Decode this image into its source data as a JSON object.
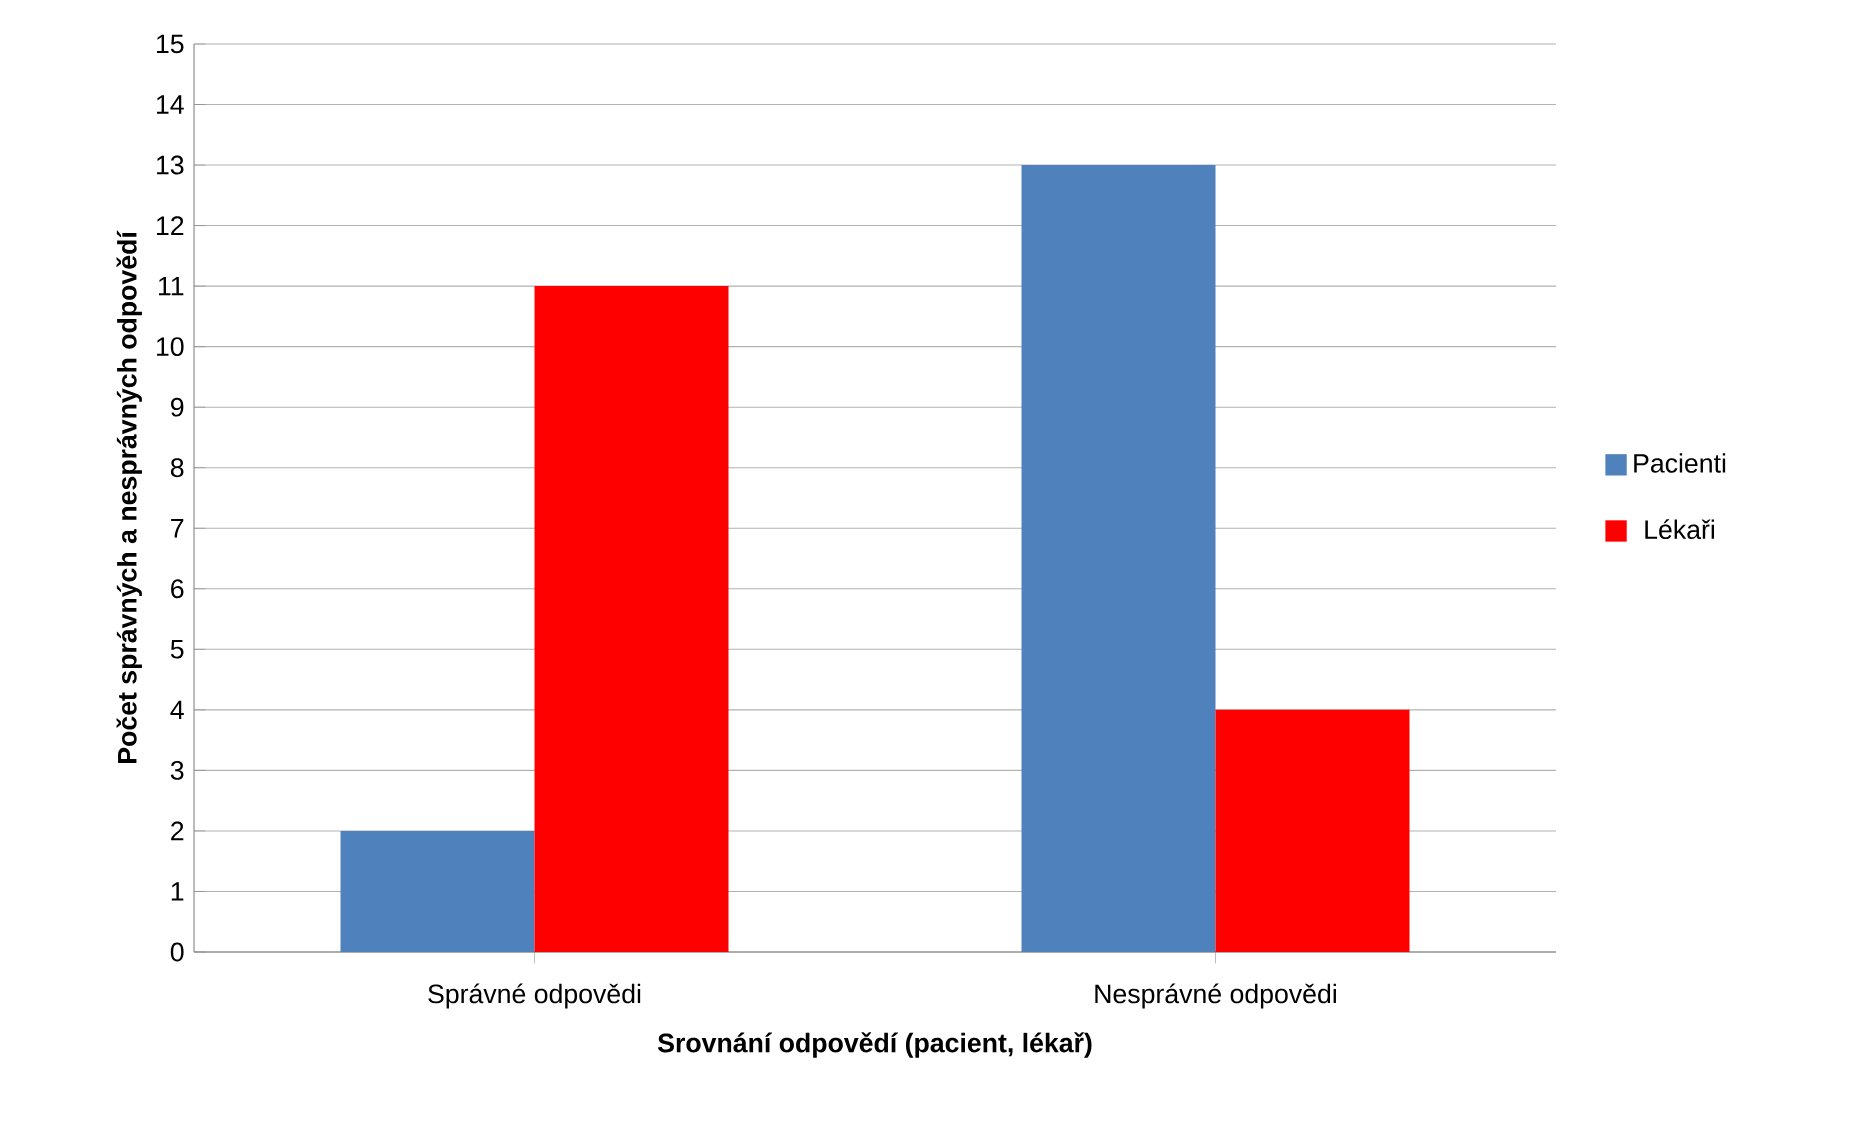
{
  "chart_data": {
    "type": "bar",
    "xlabel": "Srovnání odpovědí (pacient, lékař)",
    "ylabel": "Počet správných a nesprávných odpovědí",
    "categories": [
      "Správné odpovědi",
      "Nesprávné odpovědi"
    ],
    "series": [
      {
        "name": "Pacienti",
        "color": "#4f81bd",
        "values": [
          2,
          13
        ]
      },
      {
        "name": "Lékaři",
        "color": "#ff0000",
        "values": [
          11,
          4
        ]
      }
    ],
    "ylim": [
      0,
      15
    ],
    "yticks": [
      0,
      1,
      2,
      3,
      4,
      5,
      6,
      7,
      8,
      9,
      10,
      11,
      12,
      13,
      14,
      15
    ],
    "grid": "y",
    "legend": "right"
  }
}
